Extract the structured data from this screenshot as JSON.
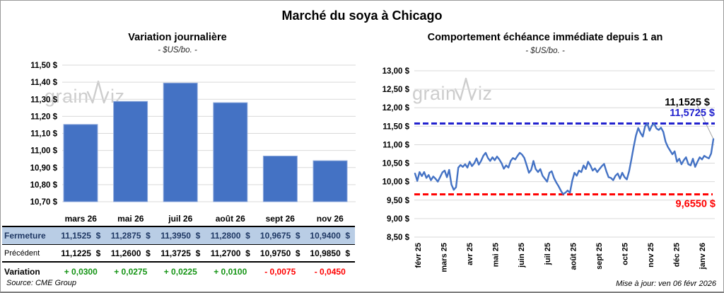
{
  "page": {
    "title": "Marché du soya à Chicago",
    "source": "Source: CME Group",
    "updated": "Mise à jour: ven 06 févr 2026",
    "watermark": {
      "part1": "grain",
      "part2": "iz"
    }
  },
  "colors": {
    "bar": "#4472C4",
    "bar_border": "#8FAADC",
    "line": "#4472C4",
    "high": "#2121CE",
    "low": "#FF0000",
    "grid": "#D9D9D9",
    "leader": "#A6A6A6",
    "positive": "#149414",
    "negative": "#FF0000",
    "header_bg": "#B9CDE5",
    "header_text": "#1F3864",
    "watermark": "#CBCBCB"
  },
  "chart_data": [
    {
      "type": "bar",
      "title": "Variation journalière",
      "subtitle": "- $US/bo. -",
      "categories": [
        "mars 26",
        "mai 26",
        "juil 26",
        "août 26",
        "sept 26",
        "nov 26"
      ],
      "values": [
        11.1525,
        11.2875,
        11.395,
        11.28,
        10.9675,
        10.94
      ],
      "ylim": [
        10.7,
        11.5
      ],
      "ytick_step": 0.1,
      "ytick_labels": [
        "11,50 $",
        "11,40 $",
        "11,30 $",
        "11,20 $",
        "11,10 $",
        "11,00 $",
        "10,90 $",
        "10,80 $",
        "10,70 $"
      ],
      "grid": true,
      "legend": "none"
    },
    {
      "type": "line",
      "title": "Comportement échéance immédiate depuis 1 an",
      "subtitle": "- $US/bo. -",
      "x_tick_labels": [
        "févr 25",
        "mars 25",
        "avr 25",
        "mai 25",
        "juin 25",
        "juil 25",
        "août 25",
        "sept 25",
        "oct 25",
        "nov 25",
        "déc 25",
        "janv 26"
      ],
      "ylim": [
        8.5,
        13.0
      ],
      "ytick_step": 0.5,
      "ytick_labels": [
        "13,00 $",
        "12,50 $",
        "12,00 $",
        "11,50 $",
        "11,00 $",
        "10,50 $",
        "10,00 $",
        "9,50 $",
        "9,00 $",
        "8,50 $"
      ],
      "high_line": {
        "value": 11.5725,
        "label": "11,5725 $"
      },
      "low_line": {
        "value": 9.655,
        "label": "9,6550 $"
      },
      "last_point": {
        "value": 11.1525,
        "label": "11,1525 $"
      },
      "grid": true,
      "legend": "none",
      "values": [
        10.22,
        10.02,
        10.26,
        10.15,
        10.26,
        10.1,
        10.18,
        10.04,
        10.14,
        10.08,
        10.0,
        10.12,
        10.25,
        10.3,
        10.12,
        10.32,
        9.92,
        9.78,
        9.85,
        10.38,
        10.45,
        10.4,
        10.47,
        10.38,
        10.54,
        10.42,
        10.5,
        10.63,
        10.46,
        10.56,
        10.7,
        10.78,
        10.64,
        10.56,
        10.66,
        10.58,
        10.68,
        10.6,
        10.5,
        10.35,
        10.44,
        10.38,
        10.56,
        10.64,
        10.6,
        10.7,
        10.78,
        10.73,
        10.64,
        10.45,
        10.24,
        10.32,
        10.56,
        10.34,
        10.26,
        10.34,
        10.16,
        10.08,
        10.0,
        10.24,
        10.28,
        10.1,
        9.98,
        9.88,
        9.76,
        9.66,
        9.7,
        9.76,
        9.7,
        10.02,
        10.24,
        10.16,
        10.3,
        10.26,
        10.44,
        10.34,
        10.54,
        10.44,
        10.3,
        10.36,
        10.26,
        10.34,
        10.42,
        10.48,
        10.28,
        10.12,
        10.1,
        10.04,
        10.16,
        10.22,
        10.08,
        10.24,
        10.12,
        10.06,
        10.28,
        10.6,
        10.95,
        11.25,
        11.45,
        11.32,
        11.22,
        11.5,
        11.57,
        11.38,
        11.52,
        11.57,
        11.44,
        11.4,
        11.46,
        11.35,
        11.08,
        10.94,
        10.84,
        10.74,
        10.82,
        10.54,
        10.62,
        10.47,
        10.58,
        10.66,
        10.47,
        10.44,
        10.62,
        10.4,
        10.54,
        10.66,
        10.6,
        10.7,
        10.66,
        10.63,
        10.76,
        11.1525
      ]
    }
  ],
  "table": {
    "rows": [
      {
        "label": "Fermeture",
        "values": [
          "11,1525  $",
          "11,2875  $",
          "11,3950  $",
          "11,2800  $",
          "10,9675  $",
          "10,9400  $"
        ]
      },
      {
        "label": "Précédent",
        "values": [
          "11,1225  $",
          "11,2600  $",
          "11,3725  $",
          "11,2700  $",
          "10,9750  $",
          "10,9850  $"
        ]
      },
      {
        "label": "Variation",
        "values": [
          "+ 0,0300",
          "+ 0,0275",
          "+ 0,0225",
          "+ 0,0100",
          "- 0,0075",
          "- 0,0450"
        ]
      }
    ]
  }
}
